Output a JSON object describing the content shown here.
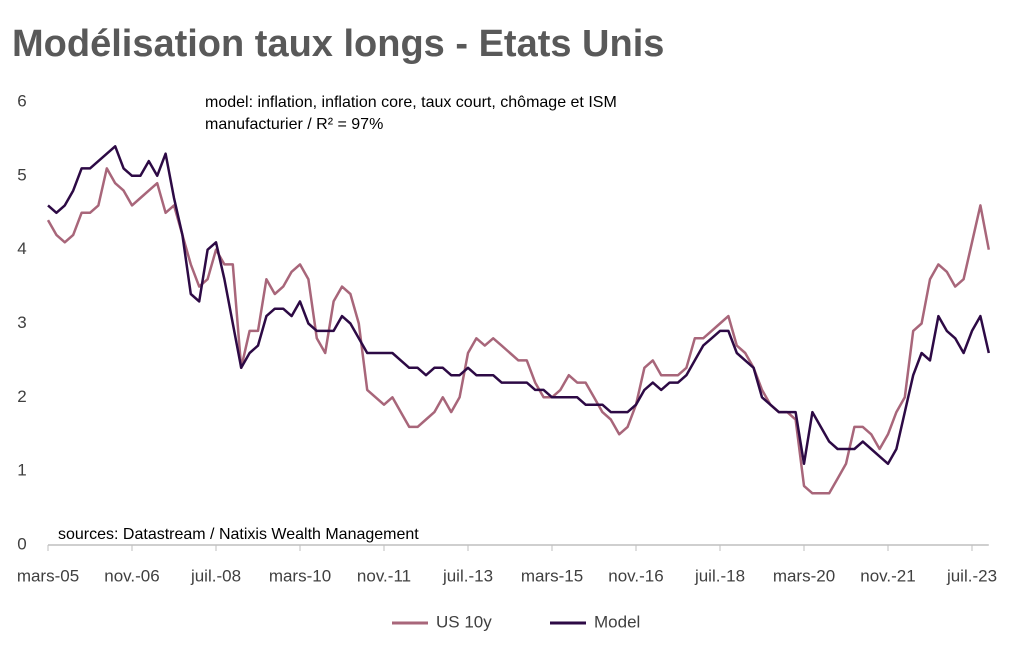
{
  "chart_data": {
    "type": "line",
    "title": "Modélisation taux longs - Etats Unis",
    "annotations": [
      "model: inflation, inflation core, taux court, chômage et ISM",
      "manufacturier / R² = 97%"
    ],
    "source": "sources: Datastream / Natixis Wealth Management",
    "categories": [
      "mars-05",
      null,
      null,
      null,
      null,
      null,
      null,
      null,
      null,
      null,
      "nov.-06",
      null,
      null,
      null,
      null,
      null,
      null,
      null,
      null,
      null,
      "juil.-08",
      null,
      null,
      null,
      null,
      null,
      null,
      null,
      null,
      null,
      "mars-10",
      null,
      null,
      null,
      null,
      null,
      null,
      null,
      null,
      null,
      "nov.-11",
      null,
      null,
      null,
      null,
      null,
      null,
      null,
      null,
      null,
      "juil.-13",
      null,
      null,
      null,
      null,
      null,
      null,
      null,
      null,
      null,
      "mars-15",
      null,
      null,
      null,
      null,
      null,
      null,
      null,
      null,
      null,
      "nov.-16",
      null,
      null,
      null,
      null,
      null,
      null,
      null,
      null,
      null,
      "juil.-18",
      null,
      null,
      null,
      null,
      null,
      null,
      null,
      null,
      null,
      "mars-20",
      null,
      null,
      null,
      null,
      null,
      null,
      null,
      null,
      null,
      "nov.-21",
      null,
      null,
      null,
      null,
      null,
      null,
      null,
      null,
      null,
      "juil.-23",
      null,
      null
    ],
    "series": [
      {
        "name": "US 10y",
        "color": "#a8667a",
        "values": [
          4.4,
          4.2,
          4.1,
          4.2,
          4.5,
          4.5,
          4.6,
          5.1,
          4.9,
          4.8,
          4.6,
          4.7,
          4.8,
          4.9,
          4.5,
          4.6,
          4.2,
          3.8,
          3.5,
          3.6,
          4.0,
          3.8,
          3.8,
          2.4,
          2.9,
          2.9,
          3.6,
          3.4,
          3.5,
          3.7,
          3.8,
          3.6,
          2.8,
          2.6,
          3.3,
          3.5,
          3.4,
          3.0,
          2.1,
          2.0,
          1.9,
          2.0,
          1.8,
          1.6,
          1.6,
          1.7,
          1.8,
          2.0,
          1.8,
          2.0,
          2.6,
          2.8,
          2.7,
          2.8,
          2.7,
          2.6,
          2.5,
          2.5,
          2.2,
          2.0,
          2.0,
          2.1,
          2.3,
          2.2,
          2.2,
          2.0,
          1.8,
          1.7,
          1.5,
          1.6,
          1.9,
          2.4,
          2.5,
          2.3,
          2.3,
          2.3,
          2.4,
          2.8,
          2.8,
          2.9,
          3.0,
          3.1,
          2.7,
          2.6,
          2.4,
          2.1,
          1.9,
          1.8,
          1.8,
          1.7,
          0.8,
          0.7,
          0.7,
          0.7,
          0.9,
          1.1,
          1.6,
          1.6,
          1.5,
          1.3,
          1.5,
          1.8,
          2.0,
          2.9,
          3.0,
          3.6,
          3.8,
          3.7,
          3.5,
          3.6,
          4.1,
          4.6,
          4.0
        ]
      },
      {
        "name": "Model",
        "color": "#2d0a45",
        "values": [
          4.6,
          4.5,
          4.6,
          4.8,
          5.1,
          5.1,
          5.2,
          5.3,
          5.4,
          5.1,
          5.0,
          5.0,
          5.2,
          5.0,
          5.3,
          4.7,
          4.2,
          3.4,
          3.3,
          4.0,
          4.1,
          3.6,
          3.0,
          2.4,
          2.6,
          2.7,
          3.1,
          3.2,
          3.2,
          3.1,
          3.3,
          3.0,
          2.9,
          2.9,
          2.9,
          3.1,
          3.0,
          2.8,
          2.6,
          2.6,
          2.6,
          2.6,
          2.5,
          2.4,
          2.4,
          2.3,
          2.4,
          2.4,
          2.3,
          2.3,
          2.4,
          2.3,
          2.3,
          2.3,
          2.2,
          2.2,
          2.2,
          2.2,
          2.1,
          2.1,
          2.0,
          2.0,
          2.0,
          2.0,
          1.9,
          1.9,
          1.9,
          1.8,
          1.8,
          1.8,
          1.9,
          2.1,
          2.2,
          2.1,
          2.2,
          2.2,
          2.3,
          2.5,
          2.7,
          2.8,
          2.9,
          2.9,
          2.6,
          2.5,
          2.4,
          2.0,
          1.9,
          1.8,
          1.8,
          1.8,
          1.1,
          1.8,
          1.6,
          1.4,
          1.3,
          1.3,
          1.3,
          1.4,
          1.3,
          1.2,
          1.1,
          1.3,
          1.8,
          2.3,
          2.6,
          2.5,
          3.1,
          2.9,
          2.8,
          2.6,
          2.9,
          3.1,
          2.6
        ]
      }
    ],
    "ylim": [
      0,
      6
    ],
    "yticks": [
      0,
      1,
      2,
      3,
      4,
      5,
      6
    ],
    "grid": false,
    "legend": "bottom"
  }
}
